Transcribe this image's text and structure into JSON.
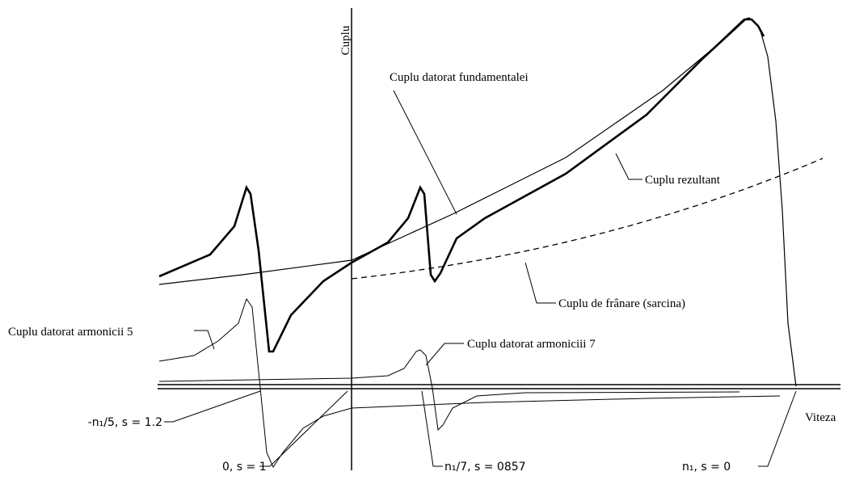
{
  "axes": {
    "y_label": "Cuplu",
    "x_label": "Viteza"
  },
  "curves": [
    {
      "label": "Cuplu datorat fundamentalei"
    },
    {
      "label": "Cuplu rezultant"
    },
    {
      "label": "Cuplu de frânare (sarcina)"
    },
    {
      "label": "Cuplu datorat armonicii 5"
    },
    {
      "label": "Cuplu datorat armoniciii 7"
    }
  ],
  "points": [
    "-n₁/5, s = 1.2",
    "0, s = 1",
    "n₁/7, s = 0857",
    "n₁, s = 0"
  ]
}
